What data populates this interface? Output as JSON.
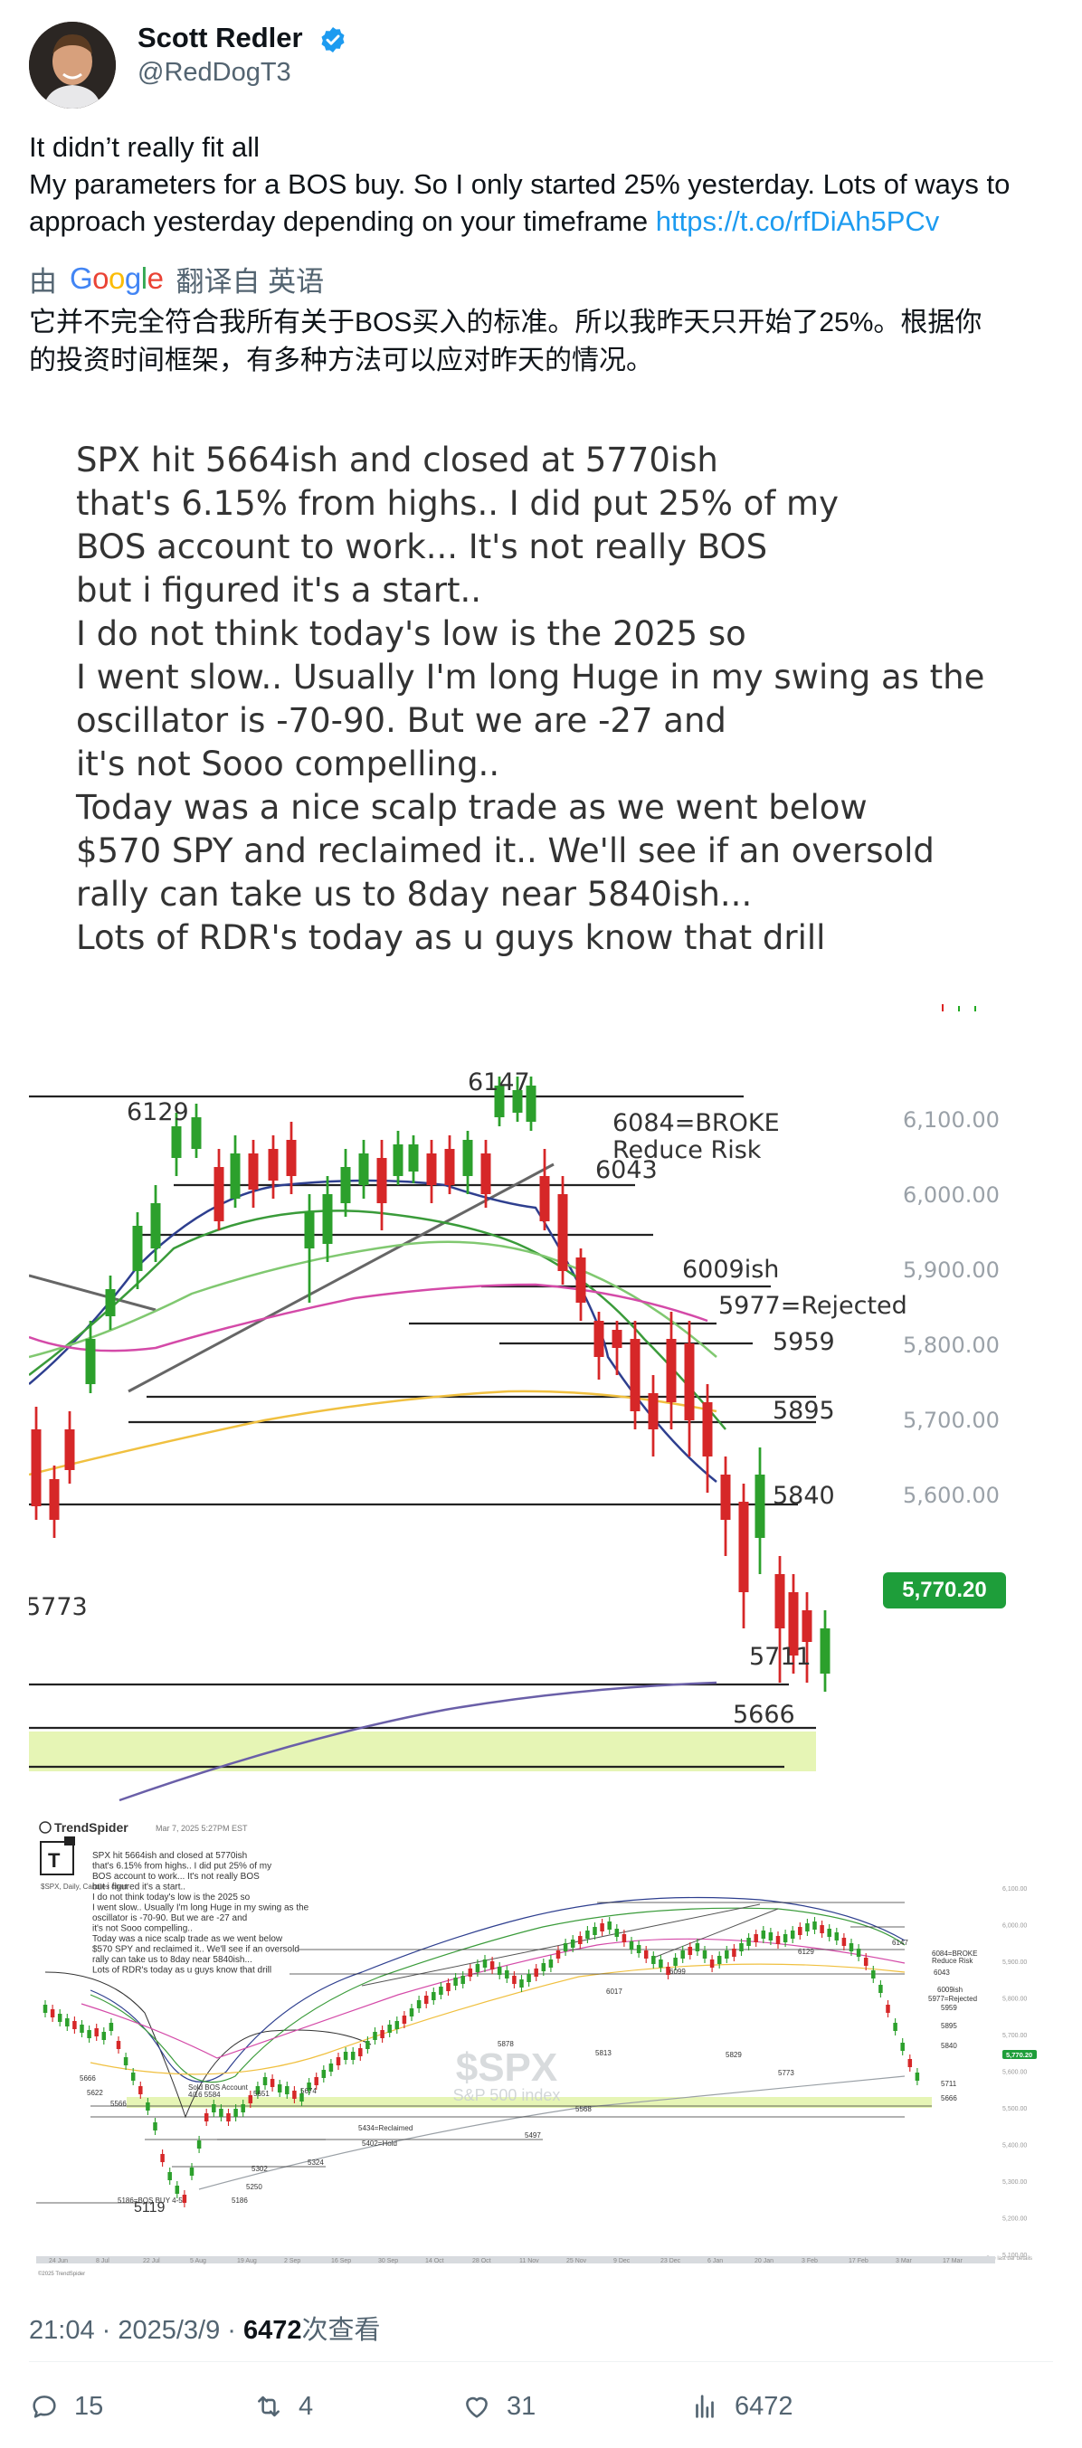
{
  "author": {
    "name": "Scott Redler",
    "handle": "@RedDogT3",
    "verified": true
  },
  "tweet": {
    "line1": "It didn’t really fit all",
    "line2": "My parameters for a BOS buy.  So I only started 25% yesterday. Lots of ways to",
    "line3": "approach yesterday depending on your timeframe ",
    "link": "https://t.co/rfDiAh5PCv"
  },
  "translation": {
    "prefix": "由",
    "provider": "Google",
    "suffix": "翻译自 英语",
    "line1": "它并不完全符合我所有关于BOS买入的标准。所以我昨天只开始了25%。根据你",
    "line2": "的投资时间框架，有多种方法可以应对昨天的情况。"
  },
  "note_image": {
    "lines": [
      "SPX hit 5664ish and closed at 5770ish",
      "that's 6.15% from highs.. I did put 25% of my",
      "BOS account to work... It's not really BOS",
      "but i figured it's a start..",
      "I do not think today's low is the 2025 so",
      "I went slow.. Usually I'm long Huge in my swing as the",
      "oscillator is -70-90. But we are -27 and",
      "it's not Sooo compelling..",
      "Today was a nice scalp trade as we went below",
      "$570 SPY and reclaimed it.. We'll see if an oversold",
      "rally can take us to 8day near 5840ish...",
      "Lots of RDR's today as u guys know that drill"
    ]
  },
  "chart_zoom": {
    "axis_ticks": [
      "6,100.00",
      "6,000.00",
      "5,900.00",
      "5,800.00",
      "5,700.00",
      "5,600.00"
    ],
    "price_badge": "5,770.20",
    "levels": {
      "l6147": "6147",
      "l6129": "6129",
      "l6084a": "6084=BROKE",
      "l6084b": "Reduce Risk",
      "l6043": "6043",
      "l6009": "6009ish",
      "l5977": "5977=Rejected",
      "l5959": "5959",
      "l5895": "5895",
      "l5840": "5840",
      "l5773": "5773",
      "l5711": "5711",
      "l5666": "5666"
    }
  },
  "trendspider": {
    "brand": "TrendSpider",
    "date": "Mar 7, 2025 5:27PM EST",
    "subtitle": "$SPX, Daily, Candles chart",
    "watermark": "$SPX",
    "watermark_sub": "S&P 500 index",
    "copyright": "©2025 TrendSpider",
    "note_lines": [
      "SPX hit 5664ish and closed at 5770ish",
      "that's 6.15% from highs.. I did put 25% of my",
      "BOS account to work... It's not really BOS",
      "but i figured it's a start..",
      "I do not think today's low is the 2025 so",
      "I went slow.. Usually I'm long Huge in my swing as the",
      "oscillator is -70-90. But we are -27 and",
      "it's not Sooo compelling..",
      "Today was a nice scalp trade as we went below",
      "$570 SPY and reclaimed it.. We'll see if an oversold",
      "rally can take us to 8day near 5840ish...",
      "Lots of RDR's today as u guys know that drill"
    ],
    "x_ticks": [
      "24 Jun",
      "8 Jul",
      "22 Jul",
      "5 Aug",
      "19 Aug",
      "2 Sep",
      "16 Sep",
      "30 Sep",
      "14 Oct",
      "28 Oct",
      "11 Nov",
      "25 Nov",
      "9 Dec",
      "23 Dec",
      "6 Jan",
      "20 Jan",
      "3 Feb",
      "17 Feb",
      "3 Mar",
      "17 Mar"
    ],
    "y_ticks": [
      "6,100.00",
      "6,000.00",
      "5,900.00",
      "5,800.00",
      "5,700.00",
      "5,600.00",
      "5,500.00",
      "5,400.00",
      "5,300.00",
      "5,200.00",
      "5,100.00"
    ],
    "badge": "5,770.20",
    "annotations": {
      "a5119": "5119",
      "a5666": "5666",
      "a5622": "5622",
      "a5566": "5566",
      "a5651": "5651",
      "a5674": "5674",
      "a5434": "5434=Reclaimed",
      "a5402": "5402=Hold",
      "a5324": "5324",
      "a5302": "5302",
      "a5250": "5250",
      "a5186": "5186",
      "a5186b": "5186=BOS BUY 4-5",
      "a5497": "5497",
      "a5568": "5568",
      "a5878": "5878",
      "a5813": "5813",
      "a5829": "5829",
      "a5773": "5773",
      "a6017": "6017",
      "a6099": "6099",
      "a6129": "6129",
      "a6147": "6147",
      "a6084": "6084=BROKE",
      "a6084b": "Reduce Risk",
      "a6043": "6043",
      "a6009": "6009ish",
      "a5977": "5977=Rejected",
      "a5959": "5959",
      "a5895": "5895",
      "a5840": "5840",
      "a5711": "5711",
      "a5666b": "5666",
      "bos1": "Sold BOS Account",
      "bos2": "4/16 5584",
      "footer": "See last bar details"
    }
  },
  "meta": {
    "time": "21:04",
    "dot1": " · ",
    "date": "2025/3/9",
    "dot2": " · ",
    "views": "6472",
    "views_label": "次查看"
  },
  "actions": {
    "replies": "15",
    "reposts": "4",
    "likes": "31",
    "views": "6472"
  }
}
